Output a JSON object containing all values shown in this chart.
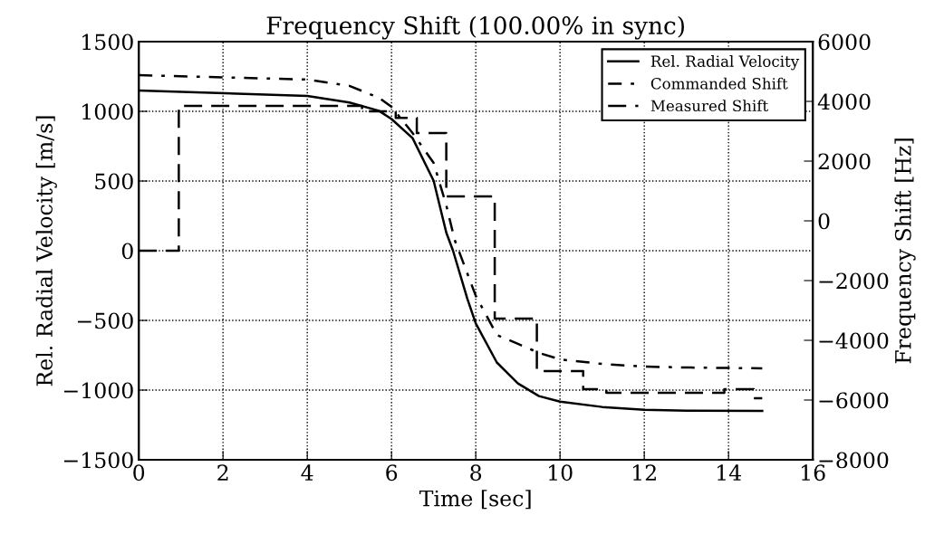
{
  "chart_data": {
    "type": "line",
    "title": "Frequency Shift (100.00% in sync)",
    "xlabel": "Time [sec]",
    "ylabel": "Rel. Radial Velocity [m/s]",
    "y2label": "Frequency Shift [Hz]",
    "xlim": [
      0,
      16
    ],
    "xticks": [
      0,
      2,
      4,
      6,
      8,
      10,
      12,
      14,
      16
    ],
    "ylim": [
      -1500,
      1500
    ],
    "yticks": [
      {
        "value": -1500,
        "label": "−1500"
      },
      {
        "value": -1000,
        "label": "−1000"
      },
      {
        "value": -500,
        "label": "−500"
      },
      0,
      500,
      1000,
      1500
    ],
    "y2lim": [
      -8000,
      6000
    ],
    "y2ticks": [
      {
        "value": -8000,
        "label": "−8000"
      },
      {
        "value": -6000,
        "label": "−6000"
      },
      {
        "value": -4000,
        "label": "−4000"
      },
      {
        "value": -2000,
        "label": "−2000"
      },
      0,
      2000,
      4000,
      6000
    ],
    "grid": true,
    "legend": "top right",
    "series": [
      {
        "name": "Rel. Radial Velocity",
        "color": "#000000",
        "line_style": "solid",
        "x": [
          0,
          4,
          5,
          5.7,
          6,
          6.5,
          7,
          7.3,
          7.46,
          7.8,
          8,
          8.5,
          9,
          9.5,
          10,
          11,
          12,
          13,
          14.8
        ],
        "values": [
          1150,
          1110,
          1063,
          1004,
          945,
          808,
          502,
          130,
          0,
          -345,
          -522,
          -802,
          -952,
          -1043,
          -1083,
          -1121,
          -1141,
          -1148,
          -1150
        ]
      },
      {
        "name": "Commanded Shift",
        "axis": "y2",
        "color": "#000000",
        "line_style": "dashdot",
        "x": [
          0,
          4,
          5,
          5.7,
          6,
          6.5,
          7,
          7.3,
          7.5,
          8,
          8.5,
          9,
          9.5,
          10,
          11,
          12,
          13,
          14.8
        ],
        "values": [
          4880,
          4730,
          4520,
          4120,
          3820,
          2940,
          1940,
          520,
          -640,
          -2510,
          -3820,
          -4120,
          -4420,
          -4640,
          -4790,
          -4880,
          -4910,
          -4940
        ]
      },
      {
        "name": "Measured Shift",
        "type": "step",
        "axis": "y2",
        "color": "#000000",
        "line_style": "dashed",
        "x": [
          0,
          0.95,
          5.3,
          6.1,
          6.6,
          7.3,
          8.45,
          9.45,
          10.55,
          11.1,
          13.9,
          14.6,
          14.8
        ],
        "values": [
          -1000,
          3850,
          3670,
          3450,
          2940,
          820,
          -3270,
          -5030,
          -5640,
          -5760,
          -5640,
          -5940,
          -5940
        ]
      }
    ]
  }
}
